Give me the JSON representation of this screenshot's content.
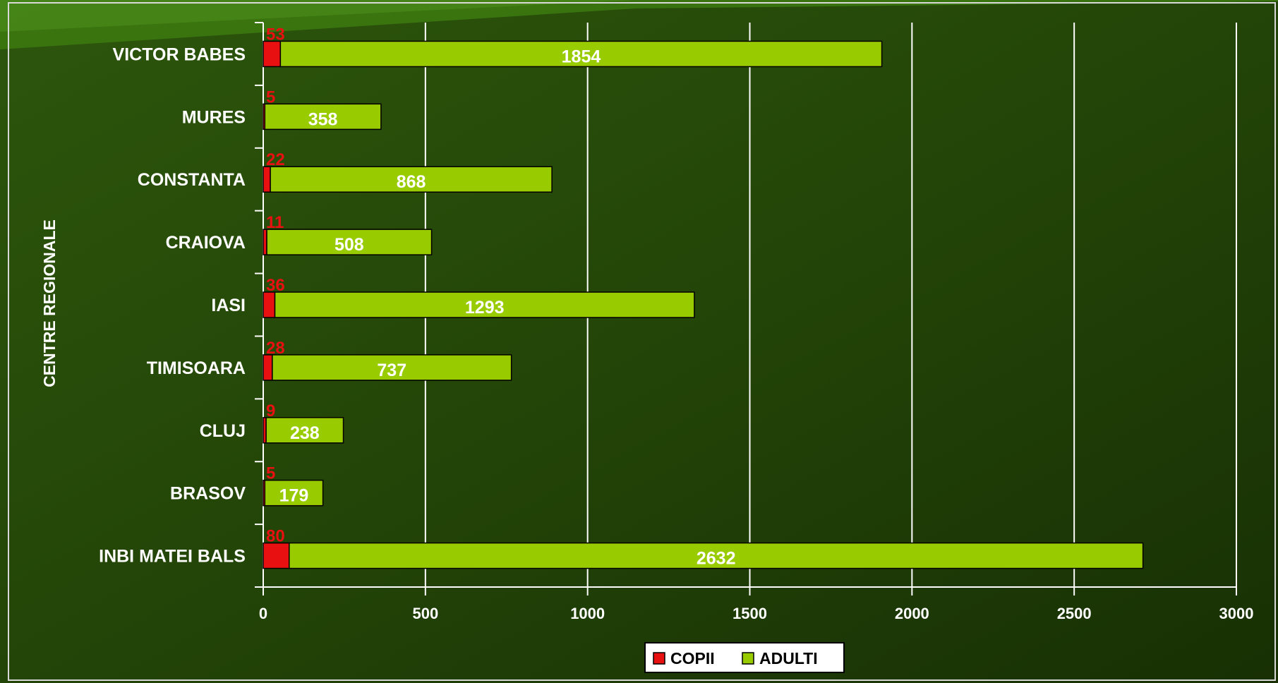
{
  "chart_data": {
    "type": "bar",
    "orientation": "horizontal",
    "stacked": true,
    "title": "",
    "xlabel": "",
    "ylabel": "CENTRE REGIONALE",
    "categories": [
      "VICTOR BABES",
      "MURES",
      "CONSTANTA",
      "CRAIOVA",
      "IASI",
      "TIMISOARA",
      "CLUJ",
      "BRASOV",
      "INBI MATEI BALS"
    ],
    "series": [
      {
        "name": "COPII",
        "color": "#e81010",
        "values": [
          53,
          5,
          22,
          11,
          36,
          28,
          9,
          5,
          80
        ]
      },
      {
        "name": "ADULTI",
        "color": "#99cc00",
        "values": [
          1854,
          358,
          868,
          508,
          1293,
          737,
          238,
          179,
          2632
        ]
      }
    ],
    "xlim": [
      0,
      3000
    ],
    "xticks": [
      0,
      500,
      1000,
      1500,
      2000,
      2500,
      3000
    ],
    "grid": "vertical",
    "legend_position": "bottom"
  }
}
